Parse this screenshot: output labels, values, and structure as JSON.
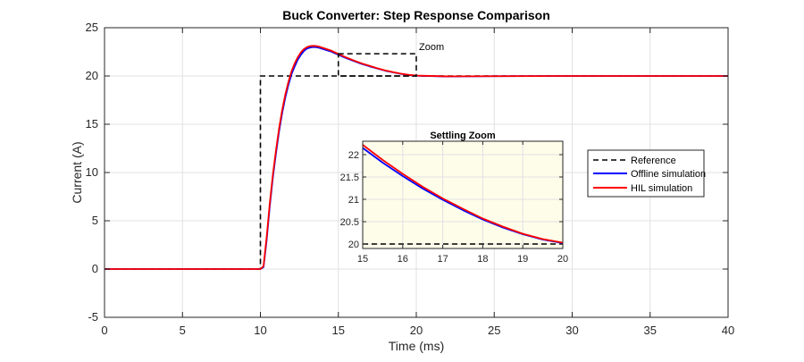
{
  "chart_data": [
    {
      "type": "line",
      "title": "Buck Converter: Step Response Comparison",
      "xlabel": "Time (ms)",
      "ylabel": "Current (A)",
      "xlim": [
        0,
        40
      ],
      "ylim": [
        -5,
        25
      ],
      "xticks": [
        0,
        5,
        10,
        15,
        20,
        25,
        30,
        35,
        40
      ],
      "yticks": [
        -5,
        0,
        5,
        10,
        15,
        20,
        25
      ],
      "xtick_labels": [
        "0",
        "5",
        "10",
        "15",
        "20",
        "25",
        "30",
        "35",
        "40"
      ],
      "ytick_labels": [
        "-5",
        "0",
        "5",
        "10",
        "15",
        "20",
        "25"
      ],
      "grid": true,
      "legend_placement": "right",
      "annotation": "Zoom",
      "zoom_box": {
        "x": [
          15,
          20
        ],
        "y": [
          20,
          22.3
        ]
      },
      "series": [
        {
          "name": "Reference",
          "color": "#000000",
          "style": "dashed",
          "points": [
            [
              0,
              0
            ],
            [
              10,
              0
            ],
            [
              10,
              20
            ],
            [
              40,
              20
            ]
          ]
        },
        {
          "name": "Offline simulation",
          "color": "#0000ff",
          "style": "solid",
          "points": [
            [
              0,
              0
            ],
            [
              10,
              0
            ],
            [
              10.2,
              0.2
            ],
            [
              10.4,
              3
            ],
            [
              10.6,
              6.5
            ],
            [
              10.8,
              9.5
            ],
            [
              11,
              12
            ],
            [
              11.2,
              14.3
            ],
            [
              11.4,
              16.2
            ],
            [
              11.6,
              17.8
            ],
            [
              11.8,
              19.1
            ],
            [
              12,
              20.2
            ],
            [
              12.2,
              21
            ],
            [
              12.4,
              21.7
            ],
            [
              12.6,
              22.2
            ],
            [
              12.8,
              22.6
            ],
            [
              13,
              22.85
            ],
            [
              13.2,
              22.95
            ],
            [
              13.4,
              23
            ],
            [
              13.6,
              22.98
            ],
            [
              13.8,
              22.9
            ],
            [
              14,
              22.8
            ],
            [
              14.5,
              22.55
            ],
            [
              15,
              22.2
            ],
            [
              15.5,
              21.85
            ],
            [
              16,
              21.55
            ],
            [
              16.5,
              21.25
            ],
            [
              17,
              21
            ],
            [
              17.5,
              20.78
            ],
            [
              18,
              20.55
            ],
            [
              18.5,
              20.38
            ],
            [
              19,
              20.22
            ],
            [
              19.5,
              20.1
            ],
            [
              20,
              20.02
            ],
            [
              22,
              19.95
            ],
            [
              25,
              19.98
            ],
            [
              30,
              20
            ],
            [
              40,
              20
            ]
          ]
        },
        {
          "name": "HIL simulation",
          "color": "#ff0000",
          "style": "solid",
          "points": [
            [
              0,
              0
            ],
            [
              10,
              0
            ],
            [
              10.2,
              0.3
            ],
            [
              10.4,
              3.3
            ],
            [
              10.6,
              6.8
            ],
            [
              10.8,
              9.8
            ],
            [
              11,
              12.3
            ],
            [
              11.2,
              14.6
            ],
            [
              11.4,
              16.5
            ],
            [
              11.6,
              18.1
            ],
            [
              11.8,
              19.4
            ],
            [
              12,
              20.5
            ],
            [
              12.2,
              21.3
            ],
            [
              12.4,
              21.95
            ],
            [
              12.6,
              22.45
            ],
            [
              12.8,
              22.8
            ],
            [
              13,
              23
            ],
            [
              13.2,
              23.1
            ],
            [
              13.4,
              23.12
            ],
            [
              13.6,
              23.1
            ],
            [
              13.8,
              23.02
            ],
            [
              14,
              22.92
            ],
            [
              14.5,
              22.65
            ],
            [
              15,
              22.28
            ],
            [
              15.5,
              21.92
            ],
            [
              16,
              21.6
            ],
            [
              16.5,
              21.3
            ],
            [
              17,
              21.05
            ],
            [
              17.5,
              20.8
            ],
            [
              18,
              20.58
            ],
            [
              18.5,
              20.4
            ],
            [
              19,
              20.24
            ],
            [
              19.5,
              20.12
            ],
            [
              20,
              20.04
            ],
            [
              22,
              19.96
            ],
            [
              25,
              19.98
            ],
            [
              30,
              20
            ],
            [
              40,
              20
            ]
          ]
        }
      ]
    },
    {
      "type": "line",
      "title": "Settling Zoom",
      "xlim": [
        15,
        20
      ],
      "ylim": [
        19.9,
        22.3
      ],
      "xticks": [
        15,
        16,
        17,
        18,
        19,
        20
      ],
      "yticks": [
        20,
        20.5,
        21,
        21.5,
        22
      ],
      "xtick_labels": [
        "15",
        "16",
        "17",
        "18",
        "19",
        "20"
      ],
      "ytick_labels": [
        "20",
        "20.5",
        "21",
        "21.5",
        "22"
      ],
      "grid": true,
      "background": "#fdfdea",
      "series": [
        {
          "name": "Reference",
          "color": "#000000",
          "style": "dashed",
          "points": [
            [
              15,
              20
            ],
            [
              20,
              20
            ]
          ]
        },
        {
          "name": "Offline simulation",
          "color": "#0000ff",
          "style": "solid",
          "points": [
            [
              15,
              22.15
            ],
            [
              15.5,
              21.82
            ],
            [
              16,
              21.52
            ],
            [
              16.5,
              21.24
            ],
            [
              17,
              20.99
            ],
            [
              17.5,
              20.76
            ],
            [
              18,
              20.55
            ],
            [
              18.5,
              20.37
            ],
            [
              19,
              20.22
            ],
            [
              19.5,
              20.1
            ],
            [
              20,
              20.02
            ]
          ]
        },
        {
          "name": "HIL simulation",
          "color": "#ff0000",
          "style": "solid",
          "points": [
            [
              15,
              22.22
            ],
            [
              15.5,
              21.88
            ],
            [
              16,
              21.57
            ],
            [
              16.5,
              21.28
            ],
            [
              17,
              21.02
            ],
            [
              17.5,
              20.79
            ],
            [
              18,
              20.57
            ],
            [
              18.5,
              20.39
            ],
            [
              19,
              20.23
            ],
            [
              19.5,
              20.11
            ],
            [
              20,
              20.03
            ]
          ]
        }
      ]
    }
  ]
}
